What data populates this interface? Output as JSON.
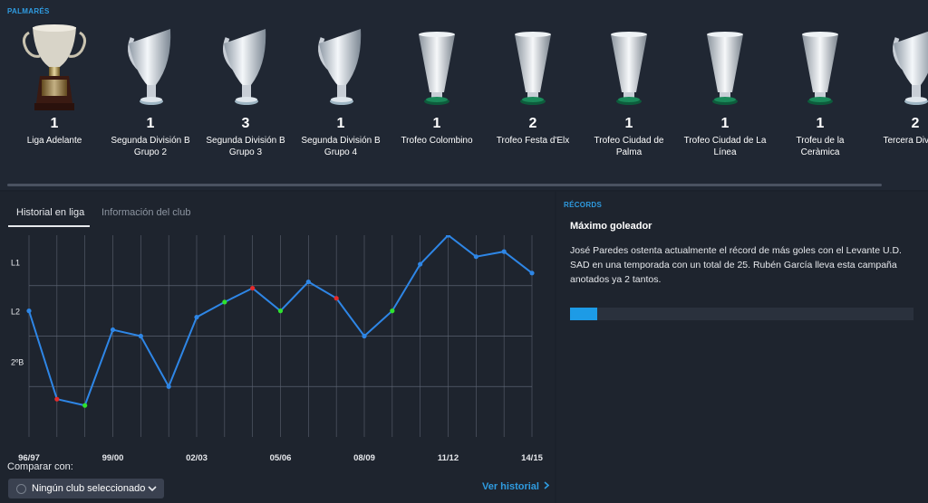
{
  "palmares": {
    "title": "PALMARÉS",
    "trophies": [
      {
        "count": "1",
        "name": "Liga Adelante",
        "style": "gold"
      },
      {
        "count": "1",
        "name": "Segunda División B Grupo 2",
        "style": "silver-tilt"
      },
      {
        "count": "3",
        "name": "Segunda División B Grupo 3",
        "style": "silver-tilt"
      },
      {
        "count": "1",
        "name": "Segunda División B Grupo 4",
        "style": "silver-tilt"
      },
      {
        "count": "1",
        "name": "Trofeo Colombino",
        "style": "silver-cone"
      },
      {
        "count": "2",
        "name": "Trofeo Festa d'Elx",
        "style": "silver-cone"
      },
      {
        "count": "1",
        "name": "Trofeo Ciudad de Palma",
        "style": "silver-cone"
      },
      {
        "count": "1",
        "name": "Trofeo Ciudad de La Línea",
        "style": "silver-cone"
      },
      {
        "count": "1",
        "name": "Trofeu de la Ceràmica",
        "style": "silver-cone"
      },
      {
        "count": "2",
        "name": "Tercera Divisi III",
        "style": "silver-tilt"
      }
    ]
  },
  "tabs": {
    "historial": "Historial en liga",
    "informacion": "Información del club"
  },
  "chart_data": {
    "type": "line",
    "y_tick_labels": [
      "L1",
      "L2",
      "2ºB"
    ],
    "x_tick_labels": [
      "96/97",
      "99/00",
      "02/03",
      "05/06",
      "08/09",
      "11/12",
      "14/15"
    ],
    "seasons": [
      "96/97",
      "97/98",
      "98/99",
      "99/00",
      "00/01",
      "01/02",
      "02/03",
      "03/04",
      "04/05",
      "05/06",
      "06/07",
      "07/08",
      "08/09",
      "09/10",
      "10/11",
      "11/12",
      "12/13",
      "13/14",
      "14/15"
    ],
    "values": [
      6,
      13,
      13.5,
      7.5,
      8,
      12,
      6.5,
      5.3,
      4.2,
      6,
      3.7,
      5,
      8,
      6,
      2.3,
      0,
      1.7,
      1.3,
      3
    ],
    "markers": [
      "none",
      "red",
      "green",
      "none",
      "none",
      "none",
      "none",
      "green",
      "red",
      "green",
      "none",
      "red",
      "none",
      "green",
      "none",
      "none",
      "none",
      "none",
      "none"
    ],
    "line_color": "#2e86e6",
    "grid": true
  },
  "compare": {
    "label": "Comparar con:",
    "selected": "Ningún club seleccionado"
  },
  "ver_historial": "Ver historial",
  "records": {
    "title": "RÉCORDS",
    "subtitle": "Máximo goleador",
    "text": "José Paredes ostenta actualmente el récord de más goles con el Levante U.D. SAD en una temporada con un total de 25. Rubén García lleva esta campaña anotados ya 2 tantos.",
    "progress_fraction": 0.08,
    "progress_color": "#1d9be6"
  }
}
